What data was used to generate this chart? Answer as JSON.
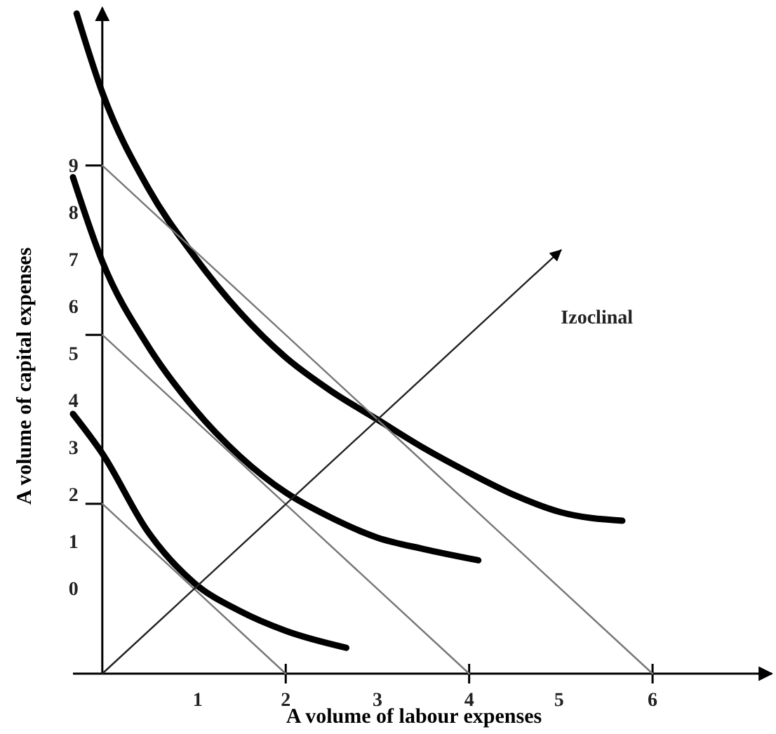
{
  "chart_data": {
    "type": "line",
    "xlabel": "A volume of labour expenses",
    "ylabel": "A volume of capital expenses",
    "xlim": [
      -0.32,
      7.3
    ],
    "ylim": [
      -1.8,
      12.35
    ],
    "xticks": [
      {
        "value": 1.04,
        "label": "1"
      },
      {
        "value": 2,
        "label": "2"
      },
      {
        "value": 3,
        "label": "3"
      },
      {
        "value": 4,
        "label": "4"
      },
      {
        "value": 4.98,
        "label": "5"
      },
      {
        "value": 6,
        "label": "6"
      },
      {
        "value": 2,
        "label": null
      },
      {
        "value": 4,
        "label": null
      },
      {
        "value": 6,
        "label": null
      }
    ],
    "yticks": [
      0,
      1,
      2,
      3,
      4,
      5,
      6,
      7,
      8,
      9,
      {
        "value": 9,
        "label": null
      },
      {
        "value": 5.4,
        "label": null
      },
      {
        "value": 1.81,
        "label": null
      }
    ],
    "grid": false,
    "legend": false,
    "marker": "none",
    "line_style": "solid",
    "series": [
      {
        "color": "#000000",
        "x": [
          -0.28,
          0,
          0.5,
          1,
          1.5,
          2,
          2.5,
          3,
          3.5,
          4,
          4.5,
          5,
          5.67
        ],
        "values": [
          12.23,
          10.55,
          8.52,
          7.08,
          5.88,
          4.92,
          4.2,
          3.6,
          3.0,
          2.47,
          1.99,
          1.63,
          1.45
        ]
      },
      {
        "color": "#000000",
        "x": [
          -0.32,
          0,
          0.5,
          1,
          1.5,
          2,
          2.5,
          3,
          3.5,
          4.1
        ],
        "values": [
          8.75,
          6.96,
          5.16,
          3.84,
          2.82,
          2.05,
          1.51,
          1.09,
          0.85,
          0.61
        ]
      },
      {
        "color": "#000000",
        "x": [
          -0.32,
          0,
          0.5,
          1,
          1.5,
          2,
          2.66
        ],
        "values": [
          3.72,
          2.88,
          1.21,
          0.13,
          -0.47,
          -0.89,
          -1.25
        ]
      },
      {
        "color": "#777777",
        "x": [
          0,
          6
        ],
        "values": [
          9,
          -1.8
        ]
      },
      {
        "color": "#777777",
        "x": [
          0,
          4
        ],
        "values": [
          5.4,
          -1.8
        ]
      },
      {
        "color": "#777777",
        "x": [
          0,
          2
        ],
        "values": [
          1.81,
          -1.8
        ]
      },
      {
        "name": "Izoclinal",
        "color": "#222222",
        "x": [
          0,
          5.0
        ],
        "values": [
          -1.8,
          7.2
        ]
      }
    ]
  }
}
